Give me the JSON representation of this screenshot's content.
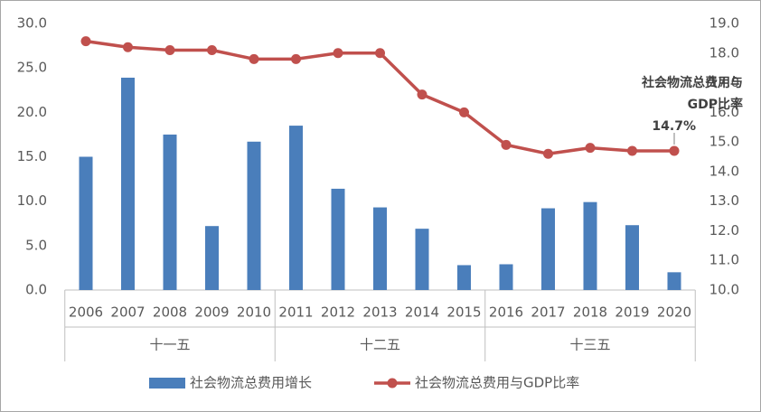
{
  "chart_data": {
    "type": "bar-line",
    "groups": [
      {
        "name": "十一五",
        "categories": [
          "2006",
          "2007",
          "2008",
          "2009",
          "2010"
        ]
      },
      {
        "name": "十二五",
        "categories": [
          "2011",
          "2012",
          "2013",
          "2014",
          "2015"
        ]
      },
      {
        "name": "十三五",
        "categories": [
          "2016",
          "2017",
          "2018",
          "2019",
          "2020"
        ]
      }
    ],
    "series": [
      {
        "name": "社会物流总费用增长",
        "type": "bar",
        "color": "#4a7ebb",
        "values": [
          15.0,
          23.9,
          17.5,
          7.2,
          16.7,
          18.5,
          11.4,
          9.3,
          6.9,
          2.8,
          2.9,
          9.2,
          9.9,
          7.3,
          2.0
        ]
      },
      {
        "name": "社会物流总费用与GDP比率",
        "type": "line",
        "axis": "y2",
        "color": "#c0504d",
        "values": [
          18.4,
          18.2,
          18.1,
          18.1,
          17.8,
          17.8,
          18.0,
          18.0,
          16.6,
          16.0,
          14.9,
          14.6,
          14.8,
          14.7,
          14.7
        ],
        "value_labels": [
          null,
          null,
          null,
          null,
          null,
          null,
          null,
          null,
          null,
          null,
          null,
          null,
          null,
          null,
          "14.7%"
        ]
      }
    ],
    "annotation": [
      "社会物流总费用与",
      "GDP比率"
    ],
    "ylim": [
      0,
      30
    ],
    "yticks": [
      {
        "value": 0,
        "label": "0.0"
      },
      {
        "value": 5,
        "label": "5.0"
      },
      {
        "value": 10,
        "label": "10.0"
      },
      {
        "value": 15,
        "label": "15.0"
      },
      {
        "value": 20,
        "label": "20.0"
      },
      {
        "value": 25,
        "label": "25.0"
      },
      {
        "value": 30,
        "label": "30.0"
      }
    ],
    "y2lim": [
      10,
      19
    ],
    "y2ticks": [
      {
        "value": 10,
        "label": "10.0"
      },
      {
        "value": 11,
        "label": "11.0"
      },
      {
        "value": 12,
        "label": "12.0"
      },
      {
        "value": 13,
        "label": "13.0"
      },
      {
        "value": 14,
        "label": "14.0"
      },
      {
        "value": 15,
        "label": "15.0"
      },
      {
        "value": 16,
        "label": "16.0"
      },
      {
        "value": 17,
        "label": "17.0"
      },
      {
        "value": 18,
        "label": "18.0"
      },
      {
        "value": 19,
        "label": "19.0"
      }
    ],
    "grid": false,
    "legend": "bottom"
  }
}
